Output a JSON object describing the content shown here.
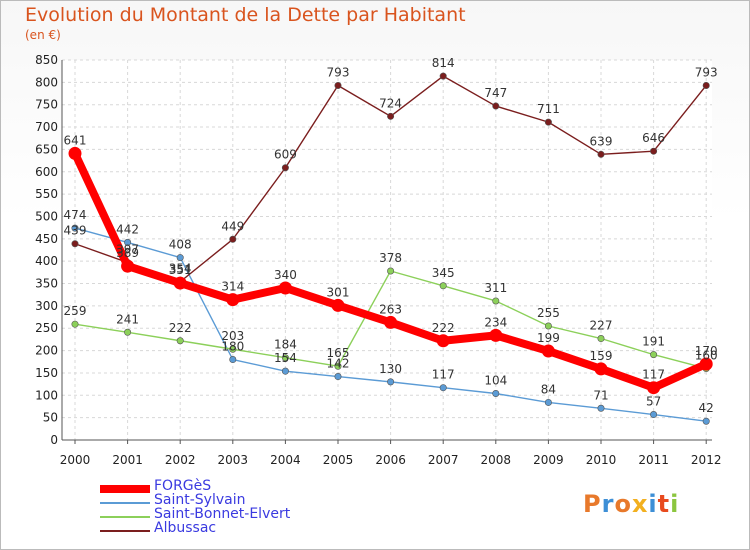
{
  "title": "Evolution du Montant de la Dette par Habitant",
  "subtitle": "(en €)",
  "logo": {
    "text": "Proxiti",
    "colors": [
      "#e8792b",
      "#3d8fd6",
      "#e8792b",
      "#f2b01f",
      "#3d8fd6",
      "#e84a1e",
      "#8cc63f"
    ]
  },
  "chart_data": {
    "type": "line",
    "title": "Evolution du Montant de la Dette par Habitant",
    "subtitle": "(en €)",
    "x": [
      "2000",
      "2001",
      "2002",
      "2003",
      "2004",
      "2005",
      "2006",
      "2007",
      "2008",
      "2009",
      "2010",
      "2011",
      "2012"
    ],
    "ylim": [
      0,
      850
    ],
    "yticks": [
      0,
      50,
      100,
      150,
      200,
      250,
      300,
      350,
      400,
      450,
      500,
      550,
      600,
      650,
      700,
      750,
      800,
      850
    ],
    "grid": true,
    "legend_position": "bottom-left",
    "series": [
      {
        "name": "FORGèS",
        "color": "#ff0000",
        "values": [
          641,
          389,
          351,
          314,
          340,
          301,
          263,
          222,
          234,
          199,
          159,
          117,
          170
        ]
      },
      {
        "name": "Saint-Sylvain",
        "color": "#5b9bd5",
        "values": [
          474,
          442,
          408,
          180,
          154,
          142,
          130,
          117,
          104,
          84,
          71,
          57,
          42
        ]
      },
      {
        "name": "Saint-Bonnet-Elvert",
        "color": "#8cd05a",
        "values": [
          259,
          241,
          222,
          203,
          184,
          165,
          378,
          345,
          311,
          255,
          227,
          191,
          160
        ]
      },
      {
        "name": "Albussac",
        "color": "#7b1e1e",
        "values": [
          439,
          397,
          354,
          449,
          609,
          793,
          724,
          814,
          747,
          711,
          639,
          646,
          793
        ]
      }
    ]
  }
}
